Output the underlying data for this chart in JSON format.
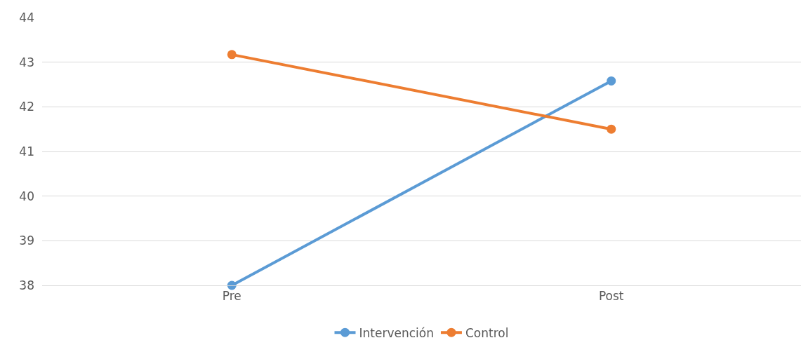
{
  "chart_data": {
    "type": "line",
    "categories": [
      "Pre",
      "Post"
    ],
    "series": [
      {
        "name": "Intervención",
        "color": "#5b9bd5",
        "values": [
          38.0,
          42.58
        ]
      },
      {
        "name": "Control",
        "color": "#ed7d31",
        "values": [
          43.17,
          41.5
        ]
      }
    ],
    "ylim": [
      38,
      44
    ],
    "yticks": [
      38,
      39,
      40,
      41,
      42,
      43,
      44
    ],
    "grid": "y",
    "legend": "bottom",
    "marker": "circle",
    "line_style": "solid"
  }
}
